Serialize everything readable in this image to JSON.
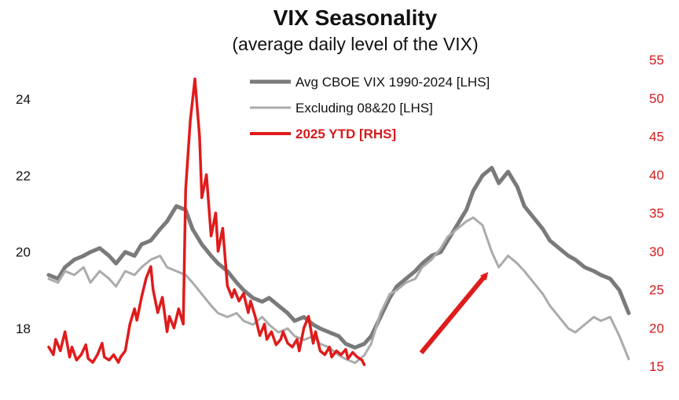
{
  "chart_data": {
    "type": "line",
    "title": "VIX Seasonality",
    "subtitle": "(average daily level of the VIX)",
    "x_domain": [
      0,
      250
    ],
    "left_axis": {
      "ticks": [
        18,
        20,
        22,
        24
      ],
      "ylim": [
        16.5,
        25
      ]
    },
    "right_axis": {
      "ticks": [
        15,
        20,
        25,
        30,
        35,
        40,
        45,
        50,
        55
      ],
      "ylim": [
        15,
        55
      ],
      "color": "#d7191c"
    },
    "legend_position": "top-center",
    "series": [
      {
        "name": "Avg CBOE VIX 1990-2024 [LHS]",
        "axis": "left",
        "color": "#7a7a7a",
        "x": [
          0,
          4,
          7,
          11,
          15,
          18,
          22,
          26,
          29,
          33,
          37,
          40,
          44,
          48,
          51,
          55,
          59,
          62,
          66,
          70,
          73,
          77,
          81,
          84,
          88,
          92,
          95,
          99,
          103,
          106,
          110,
          114,
          117,
          121,
          125,
          128,
          132,
          136,
          139,
          143,
          147,
          150,
          154,
          158,
          161,
          165,
          169,
          172,
          176,
          180,
          183,
          187,
          191,
          194,
          198,
          202,
          205,
          209,
          213,
          216,
          220,
          224,
          227,
          231,
          235,
          238,
          242,
          246,
          250
        ],
        "values": [
          19.4,
          19.3,
          19.6,
          19.8,
          19.9,
          20.0,
          20.1,
          19.9,
          19.7,
          20.0,
          19.9,
          20.2,
          20.3,
          20.6,
          20.8,
          21.2,
          21.1,
          20.6,
          20.2,
          19.9,
          19.7,
          19.5,
          19.2,
          19.0,
          18.8,
          18.7,
          18.8,
          18.6,
          18.4,
          18.2,
          18.3,
          18.1,
          18.0,
          17.9,
          17.8,
          17.6,
          17.5,
          17.6,
          17.8,
          18.3,
          18.8,
          19.1,
          19.3,
          19.5,
          19.7,
          19.9,
          20.0,
          20.3,
          20.7,
          21.1,
          21.6,
          22.0,
          22.2,
          21.8,
          22.1,
          21.7,
          21.2,
          20.9,
          20.6,
          20.3,
          20.1,
          19.9,
          19.8,
          19.6,
          19.5,
          19.4,
          19.3,
          19.0,
          18.4
        ]
      },
      {
        "name": "Excluding 08&20 [LHS]",
        "axis": "left",
        "color": "#ababab",
        "x": [
          0,
          4,
          7,
          11,
          15,
          18,
          22,
          26,
          29,
          33,
          37,
          40,
          44,
          48,
          51,
          55,
          59,
          62,
          66,
          70,
          73,
          77,
          81,
          84,
          88,
          92,
          95,
          99,
          103,
          106,
          110,
          114,
          117,
          121,
          125,
          128,
          132,
          136,
          139,
          143,
          147,
          150,
          154,
          158,
          161,
          165,
          169,
          172,
          176,
          180,
          183,
          187,
          191,
          194,
          198,
          202,
          205,
          209,
          213,
          216,
          220,
          224,
          227,
          231,
          235,
          238,
          242,
          246,
          250
        ],
        "values": [
          19.3,
          19.2,
          19.5,
          19.4,
          19.6,
          19.2,
          19.5,
          19.3,
          19.1,
          19.5,
          19.4,
          19.6,
          19.8,
          19.9,
          19.6,
          19.5,
          19.4,
          19.2,
          18.9,
          18.6,
          18.4,
          18.3,
          18.4,
          18.2,
          18.1,
          18.3,
          18.1,
          17.9,
          18.0,
          17.8,
          17.7,
          17.8,
          17.6,
          17.5,
          17.3,
          17.2,
          17.1,
          17.3,
          17.6,
          18.4,
          18.9,
          19.0,
          19.2,
          19.3,
          19.6,
          19.8,
          20.1,
          20.4,
          20.6,
          20.8,
          20.9,
          20.7,
          20.0,
          19.6,
          19.9,
          19.7,
          19.5,
          19.2,
          18.9,
          18.6,
          18.3,
          18.0,
          17.9,
          18.1,
          18.3,
          18.2,
          18.3,
          17.8,
          17.2
        ]
      },
      {
        "name": "2025 YTD [RHS]",
        "axis": "right",
        "color": "#e01b1b",
        "x": [
          0,
          2,
          3,
          5,
          7,
          9,
          10,
          12,
          14,
          16,
          17,
          19,
          21,
          23,
          24,
          26,
          28,
          30,
          31,
          33,
          35,
          37,
          38,
          40,
          42,
          44,
          45,
          47,
          49,
          51,
          52,
          54,
          56,
          58,
          59,
          61,
          63,
          65,
          66,
          68,
          70,
          72,
          73,
          75,
          77,
          79,
          80,
          82,
          84,
          86,
          87,
          89,
          91,
          93,
          94,
          96,
          98,
          100,
          101,
          103,
          105,
          107,
          108,
          110,
          112,
          114,
          115,
          117,
          119,
          121,
          122,
          124,
          126,
          128,
          129,
          131,
          133,
          135,
          136
        ],
        "values": [
          17.5,
          16.5,
          18.5,
          17.0,
          19.5,
          16.2,
          17.5,
          15.8,
          16.5,
          17.8,
          16.0,
          15.5,
          16.5,
          18.0,
          16.2,
          15.8,
          16.5,
          15.5,
          16.2,
          17.0,
          20.5,
          22.5,
          21.0,
          24.0,
          26.5,
          28.0,
          25.0,
          22.0,
          24.0,
          19.5,
          21.5,
          20.0,
          22.5,
          20.5,
          38.0,
          47.0,
          52.5,
          45.0,
          37.0,
          40.0,
          32.0,
          35.0,
          30.0,
          33.0,
          25.5,
          24.0,
          25.0,
          23.5,
          24.5,
          22.0,
          23.5,
          21.5,
          19.0,
          20.5,
          18.5,
          19.5,
          17.8,
          18.5,
          19.5,
          18.0,
          17.5,
          18.5,
          17.0,
          20.0,
          21.5,
          18.0,
          19.5,
          17.0,
          16.5,
          17.5,
          16.2,
          17.0,
          16.5,
          17.2,
          16.0,
          16.8,
          16.2,
          15.8,
          15.2
        ]
      }
    ],
    "annotation": {
      "type": "arrow",
      "color": "#e01b1b",
      "direction": "up-right"
    }
  }
}
